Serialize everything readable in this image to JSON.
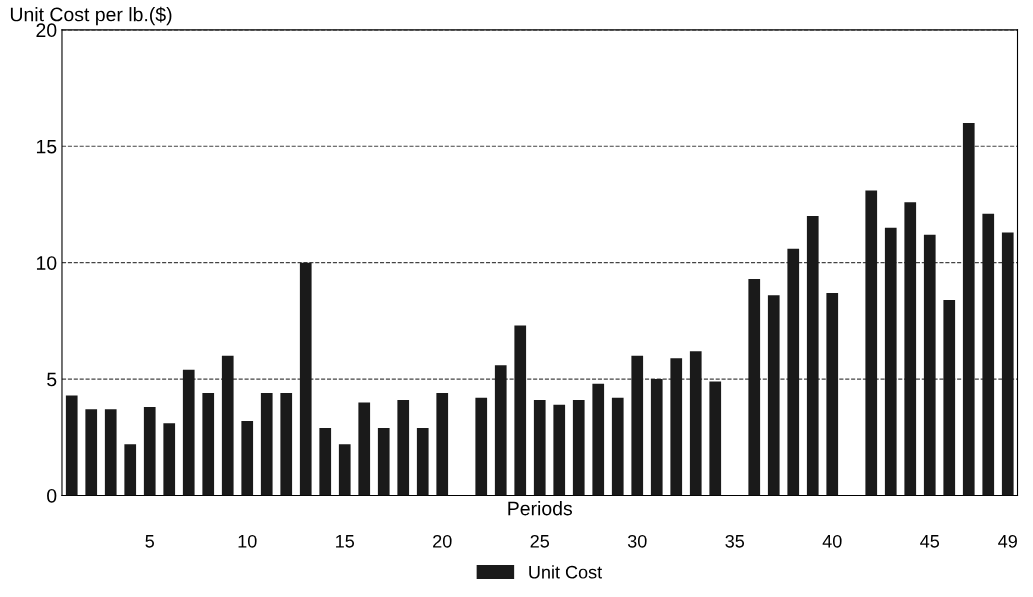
{
  "chart_data": {
    "type": "bar",
    "ylabel": "Unit Cost per lb.($)",
    "xlabel": "Periods",
    "x": [
      1,
      2,
      3,
      4,
      5,
      6,
      7,
      8,
      9,
      10,
      11,
      12,
      13,
      14,
      15,
      16,
      17,
      18,
      19,
      20,
      21,
      22,
      23,
      24,
      25,
      26,
      27,
      28,
      29,
      30,
      31,
      32,
      33,
      34,
      35,
      36,
      37,
      38,
      39,
      40,
      41,
      42,
      43,
      44,
      45,
      46,
      47,
      48,
      49
    ],
    "series": [
      {
        "name": "Unit Cost",
        "color": "#1a1a1a",
        "values": [
          4.3,
          3.7,
          3.7,
          2.2,
          3.8,
          3.1,
          5.4,
          4.4,
          6.0,
          3.2,
          4.4,
          4.4,
          10.0,
          2.9,
          2.2,
          4.0,
          2.9,
          4.1,
          2.9,
          4.4,
          null,
          4.2,
          5.6,
          7.3,
          4.1,
          3.9,
          4.1,
          4.8,
          4.2,
          6.0,
          5.0,
          5.9,
          6.2,
          4.9,
          null,
          9.3,
          8.6,
          10.6,
          12.0,
          8.7,
          null,
          13.1,
          11.5,
          12.6,
          11.2,
          8.4,
          16.0,
          12.1,
          11.3
        ]
      }
    ],
    "xlim": [
      0.5,
      49.5
    ],
    "xticks": [
      5,
      10,
      15,
      20,
      25,
      30,
      35,
      40,
      45,
      49
    ],
    "ylim": [
      0,
      20
    ],
    "yticks": [
      0,
      5,
      10,
      15,
      20
    ],
    "grid": "y",
    "line_style": "dashed",
    "legend": "bottom"
  }
}
